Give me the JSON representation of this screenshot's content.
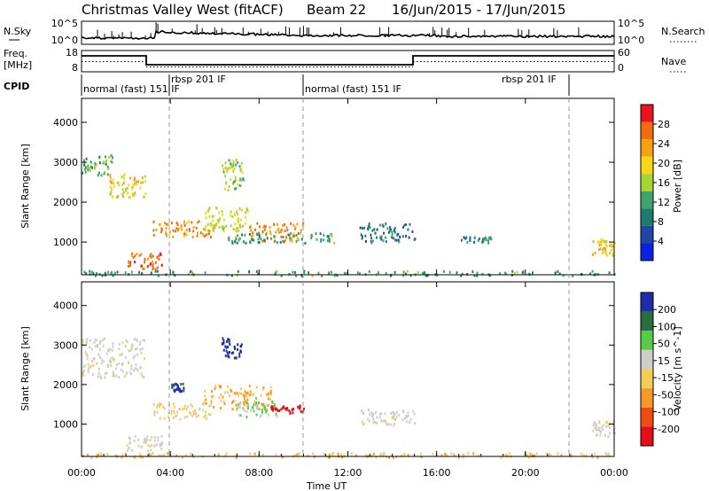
{
  "header": {
    "title_left": "Christmas Valley West (fitACF)",
    "title_beam": "Beam 22",
    "title_dates": "16/Jun/2015 - 17/Jun/2015"
  },
  "top_panels": {
    "nsky_label": "N.Sky",
    "nsky_ticks": [
      "10^5",
      "10^0"
    ],
    "nsearch_label": "N.Search",
    "nsearch_ticks": [
      "10^5",
      "10^0"
    ],
    "freq_label_line1": "Freq.",
    "freq_label_line2": "[MHz]",
    "freq_ticks": [
      "18",
      "8"
    ],
    "nave_label": "Nave",
    "nave_ticks": [
      "60",
      "0"
    ],
    "cpid_label": "CPID",
    "cpid_segments": [
      {
        "label": "normal (fast) 151 IF",
        "start_hour": 0.0,
        "end_hour": 4.1
      },
      {
        "label": "rbsp 201 IF",
        "start_hour": 4.1,
        "end_hour": 9.9
      },
      {
        "label": "normal (fast) 151 IF",
        "start_hour": 9.9,
        "end_hour": 22.0
      },
      {
        "label": "rbsp 201 IF",
        "start_hour": 22.0,
        "end_hour": 24.0
      }
    ]
  },
  "power_colorbar": {
    "label": "Power [dB]",
    "ticks": [
      "28",
      "24",
      "20",
      "16",
      "12",
      "8",
      "4"
    ],
    "colors": [
      "#e8141e",
      "#f46a0f",
      "#f79f12",
      "#f9d51a",
      "#a9d534",
      "#3fa36b",
      "#1f7a6e",
      "#1f47a6",
      "#0c21e2"
    ]
  },
  "velocity_colorbar": {
    "label": "Velocity [m s^-1]",
    "ticks": [
      "200",
      "100",
      "50",
      "15",
      "-15",
      "-50",
      "-100",
      "-200"
    ],
    "colors": [
      "#1d2ea8",
      "#2a6e3f",
      "#5aca4a",
      "#cfcfc8",
      "#f4cd57",
      "#f59a28",
      "#f04c10",
      "#e40d18"
    ]
  },
  "chart_data": [
    {
      "type": "heatmap",
      "panel": "power",
      "ylabel": "Slant Range [km]",
      "xlabel": "Time UT",
      "xlim_hours": [
        0,
        24
      ],
      "ylim_km": [
        180,
        4600
      ],
      "x_ticks": [
        "00:00",
        "04:00",
        "08:00",
        "12:00",
        "16:00",
        "20:00",
        "00:00"
      ],
      "y_ticks": [
        1000,
        2000,
        3000,
        4000
      ],
      "echo_regions": [
        {
          "t0": 0.0,
          "t1": 1.4,
          "r0": 2700,
          "r1": 3200,
          "v": 12
        },
        {
          "t0": 1.2,
          "t1": 2.9,
          "r0": 2150,
          "r1": 2750,
          "v": 18
        },
        {
          "t0": 2.0,
          "t1": 3.6,
          "r0": 350,
          "r1": 750,
          "v": 26
        },
        {
          "t0": 3.2,
          "t1": 6.0,
          "r0": 1150,
          "r1": 1550,
          "v": 23
        },
        {
          "t0": 5.5,
          "t1": 7.5,
          "r0": 1300,
          "r1": 1900,
          "v": 17
        },
        {
          "t0": 6.3,
          "t1": 7.3,
          "r0": 2300,
          "r1": 3100,
          "v": 14
        },
        {
          "t0": 7.5,
          "t1": 10.0,
          "r0": 1050,
          "r1": 1500,
          "v": 24
        },
        {
          "t0": 6.5,
          "t1": 11.5,
          "r0": 1000,
          "r1": 1250,
          "v": 10
        },
        {
          "t0": 12.5,
          "t1": 15.0,
          "r0": 1000,
          "r1": 1500,
          "v": 8
        },
        {
          "t0": 17.0,
          "t1": 18.5,
          "r0": 1000,
          "r1": 1150,
          "v": 9
        },
        {
          "t0": 23.0,
          "t1": 24.0,
          "r0": 700,
          "r1": 1100,
          "v": 20
        },
        {
          "t0": 0.0,
          "t1": 24.0,
          "r0": 180,
          "r1": 300,
          "v": 10
        }
      ]
    },
    {
      "type": "heatmap",
      "panel": "velocity",
      "ylabel": "Slant Range [km]",
      "xlabel": "Time UT",
      "xlim_hours": [
        0,
        24
      ],
      "ylim_km": [
        180,
        4600
      ],
      "x_ticks": [
        "00:00",
        "04:00",
        "08:00",
        "12:00",
        "16:00",
        "20:00",
        "00:00"
      ],
      "y_ticks": [
        1000,
        2000,
        3000,
        4000
      ],
      "echo_regions": [
        {
          "t0": 0.0,
          "t1": 2.9,
          "r0": 2200,
          "r1": 3200,
          "v": 0
        },
        {
          "t0": 2.0,
          "t1": 3.6,
          "r0": 350,
          "r1": 750,
          "v": 0
        },
        {
          "t0": 3.2,
          "t1": 5.8,
          "r0": 1150,
          "r1": 1550,
          "v": -20
        },
        {
          "t0": 4.0,
          "t1": 4.6,
          "r0": 1850,
          "r1": 2050,
          "v": 160
        },
        {
          "t0": 5.5,
          "t1": 8.5,
          "r0": 1400,
          "r1": 2000,
          "v": -40
        },
        {
          "t0": 6.3,
          "t1": 7.2,
          "r0": 2700,
          "r1": 3200,
          "v": 180
        },
        {
          "t0": 7.0,
          "t1": 8.8,
          "r0": 1200,
          "r1": 1600,
          "v": 40
        },
        {
          "t0": 8.5,
          "t1": 10.0,
          "r0": 1300,
          "r1": 1500,
          "v": -200
        },
        {
          "t0": 12.5,
          "t1": 15.0,
          "r0": 1000,
          "r1": 1400,
          "v": 0
        },
        {
          "t0": 23.0,
          "t1": 24.0,
          "r0": 700,
          "r1": 1100,
          "v": 0
        },
        {
          "t0": 0.0,
          "t1": 24.0,
          "r0": 180,
          "r1": 300,
          "v": -30
        }
      ]
    }
  ]
}
